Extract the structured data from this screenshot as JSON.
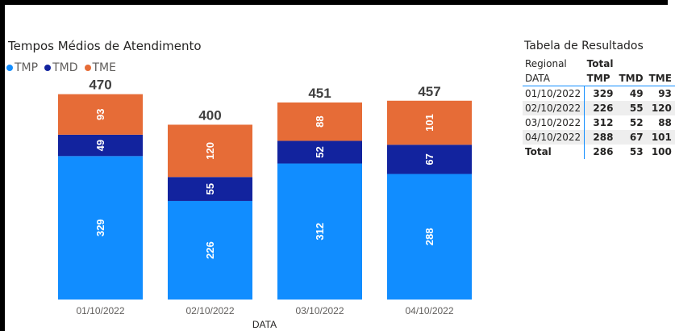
{
  "chart_data": {
    "type": "bar",
    "stacked": true,
    "title": "Tempos Médios de Atendimento",
    "xlabel": "DATA",
    "categories": [
      "01/10/2022",
      "02/10/2022",
      "03/10/2022",
      "04/10/2022"
    ],
    "series": [
      {
        "name": "TMP",
        "color": "#118dff",
        "values": [
          329,
          226,
          312,
          288
        ]
      },
      {
        "name": "TMD",
        "color": "#12239e",
        "values": [
          49,
          55,
          52,
          67
        ]
      },
      {
        "name": "TME",
        "color": "#e66c37",
        "values": [
          93,
          120,
          88,
          101
        ]
      }
    ],
    "totals": [
      470,
      400,
      451,
      457
    ],
    "ylim": [
      0,
      500
    ],
    "grid": false,
    "legend": "top-left"
  },
  "table": {
    "title": "Tabela de Resultados",
    "header_row1": {
      "label": "Regional",
      "group": "Total"
    },
    "header_row2": {
      "label": "DATA",
      "cols": [
        "TMP",
        "TMD",
        "TME"
      ]
    },
    "rows": [
      {
        "date": "01/10/2022",
        "values": [
          "329",
          "49",
          "93"
        ]
      },
      {
        "date": "02/10/2022",
        "values": [
          "226",
          "55",
          "120"
        ]
      },
      {
        "date": "03/10/2022",
        "values": [
          "312",
          "52",
          "88"
        ]
      },
      {
        "date": "04/10/2022",
        "values": [
          "288",
          "67",
          "101"
        ]
      }
    ],
    "total_row": {
      "label": "Total",
      "values": [
        "286",
        "53",
        "100"
      ]
    }
  }
}
